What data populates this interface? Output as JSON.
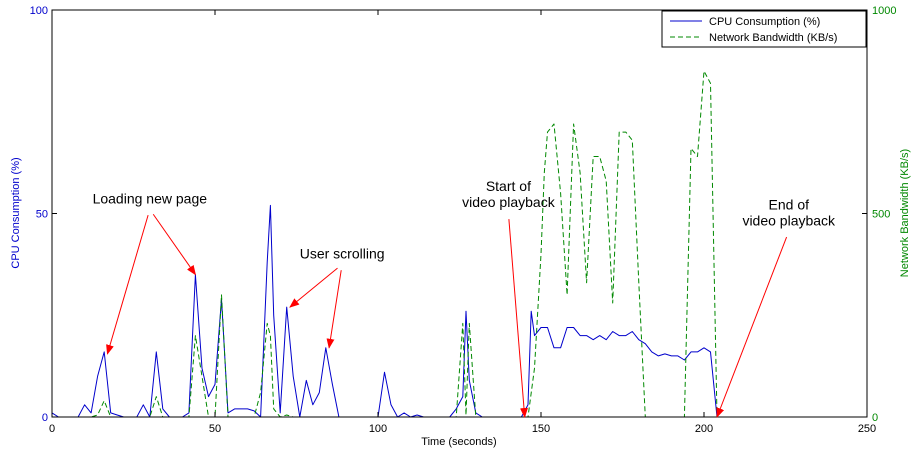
{
  "chart_data": {
    "type": "line",
    "xlabel": "Time (seconds)",
    "ylabel_left": "CPU Consumption (%)",
    "ylabel_right": "Network Bandwidth (KB/s)",
    "xlim": [
      0,
      250
    ],
    "ylim_left": [
      0,
      100
    ],
    "ylim_right": [
      0,
      1000
    ],
    "x_ticks": [
      "0",
      "50",
      "100",
      "150",
      "200",
      "250"
    ],
    "y_ticks_left": [
      "0",
      "50",
      "100"
    ],
    "y_ticks_right": [
      "0",
      "500",
      "1000"
    ],
    "grid": false,
    "legend_position": "top-right",
    "colors": {
      "cpu": "#0000cc",
      "network": "#008800"
    },
    "series": [
      {
        "name": "CPU Consumption (%)",
        "axis": "left",
        "style": "solid",
        "x": [
          0,
          2,
          4,
          8,
          10,
          12,
          14,
          16,
          18,
          20,
          22,
          26,
          28,
          30,
          32,
          34,
          36,
          38,
          40,
          42,
          44,
          46,
          48,
          50,
          52,
          54,
          56,
          58,
          60,
          62,
          64,
          66,
          67,
          68,
          70,
          72,
          74,
          76,
          78,
          80,
          82,
          84,
          86,
          88,
          90,
          100,
          102,
          104,
          106,
          108,
          110,
          112,
          114,
          116,
          118,
          122,
          124,
          126,
          127,
          128,
          130,
          132,
          134,
          136,
          140,
          142,
          144,
          146,
          147,
          148,
          150,
          152,
          154,
          156,
          158,
          160,
          162,
          164,
          166,
          168,
          170,
          172,
          174,
          176,
          178,
          180,
          182,
          184,
          186,
          188,
          190,
          192,
          194,
          196,
          198,
          200,
          202,
          204,
          206,
          210,
          212,
          214
        ],
        "y": [
          1,
          0,
          0,
          0,
          3,
          1,
          10,
          16,
          1,
          0.5,
          0,
          0,
          3,
          0,
          16,
          2,
          0,
          0,
          0,
          1,
          35,
          12,
          5,
          8,
          29,
          1,
          2,
          2,
          2,
          1.5,
          0,
          38,
          52,
          25,
          1,
          27,
          10,
          0,
          9,
          3,
          6,
          17,
          8,
          0,
          0,
          0,
          11,
          3,
          0,
          1,
          0,
          0.5,
          0,
          0,
          0,
          0,
          2,
          5,
          26,
          9,
          1,
          0,
          0,
          0,
          0,
          0,
          0,
          3,
          26,
          20,
          22,
          22,
          17,
          17,
          22,
          22,
          20,
          20,
          19,
          20,
          19,
          21,
          20,
          20,
          21,
          19,
          18,
          16,
          15,
          15.5,
          15,
          15,
          14,
          16,
          16,
          17,
          16,
          0,
          0,
          0,
          0,
          0
        ]
      },
      {
        "name": "Network Bandwidth (KB/s)",
        "axis": "right",
        "style": "dashed",
        "x": [
          0,
          12,
          14,
          16,
          18,
          20,
          30,
          32,
          34,
          36,
          42,
          44,
          46,
          48,
          50,
          52,
          54,
          56,
          62,
          64,
          66,
          67,
          68,
          70,
          72,
          74,
          76,
          78,
          80,
          100,
          124,
          126,
          127,
          128,
          130,
          132,
          140,
          144,
          146,
          148,
          150,
          151,
          152,
          154,
          156,
          158,
          160,
          162,
          164,
          166,
          168,
          170,
          172,
          174,
          176,
          178,
          180,
          182,
          184,
          186,
          190,
          194,
          196,
          198,
          200,
          202,
          204,
          206,
          210,
          250
        ],
        "y": [
          0,
          0,
          5,
          40,
          0,
          0,
          0,
          50,
          0,
          0,
          0,
          200,
          100,
          0,
          0,
          300,
          0,
          0,
          0,
          60,
          230,
          200,
          20,
          0,
          5,
          0,
          0,
          0,
          0,
          0,
          0,
          230,
          5,
          230,
          0,
          0,
          0,
          0,
          0,
          120,
          400,
          600,
          700,
          720,
          550,
          300,
          720,
          600,
          330,
          640,
          640,
          580,
          280,
          700,
          700,
          680,
          330,
          0,
          0,
          0,
          0,
          0,
          660,
          640,
          850,
          820,
          0,
          0,
          0,
          0
        ]
      }
    ],
    "annotations": [
      {
        "lines": [
          "Loading new page"
        ],
        "text_x": 30,
        "text_y": 52.5,
        "arrows_to": [
          [
            17,
            15.5
          ],
          [
            44,
            35
          ]
        ]
      },
      {
        "lines": [
          "User scrolling"
        ],
        "text_x": 89,
        "text_y": 39,
        "arrows_to": [
          [
            73,
            27
          ],
          [
            85,
            17
          ]
        ]
      },
      {
        "lines": [
          "Start of",
          "video playback"
        ],
        "text_x": 140,
        "text_y": 55.5,
        "arrows_to": [
          [
            145,
            0
          ]
        ]
      },
      {
        "lines": [
          "End of",
          "video playback"
        ],
        "text_x": 226,
        "text_y": 51,
        "arrows_to": [
          [
            204,
            0
          ]
        ]
      }
    ]
  }
}
